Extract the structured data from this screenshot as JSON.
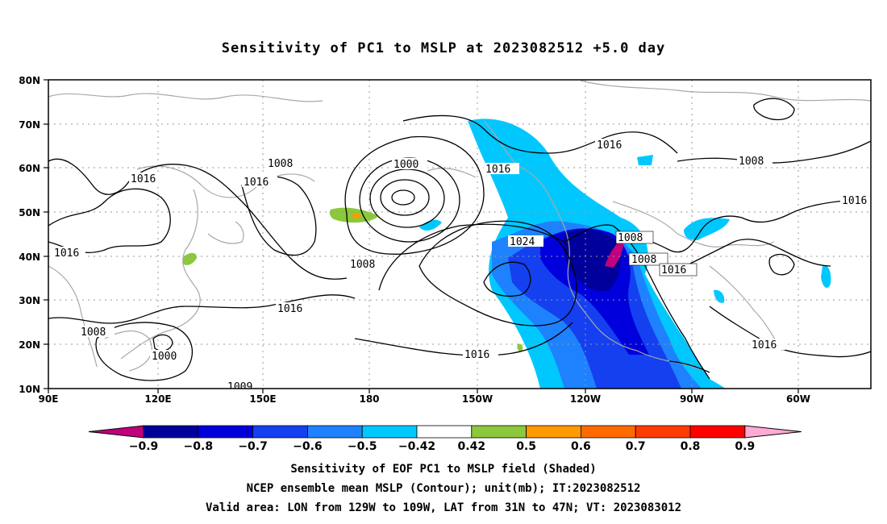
{
  "title": "Sensitivity of PC1 to MSLP at 2023082512 +5.0 day",
  "lat_ticks": [
    "80N",
    "70N",
    "60N",
    "50N",
    "40N",
    "30N",
    "20N",
    "10N"
  ],
  "lon_ticks": [
    "90E",
    "120E",
    "150E",
    "180",
    "150W",
    "120W",
    "90W",
    "60W"
  ],
  "contour_labels": [
    "1008",
    "1016",
    "1016",
    "1000",
    "1008",
    "1016",
    "1008",
    "1016",
    "1000",
    "1008",
    "1024",
    "1016",
    "1008",
    "1016",
    "1016",
    "1016",
    "1016",
    "1008",
    "1016",
    "1009"
  ],
  "colorbar": {
    "labels": [
      "−0.9",
      "−0.8",
      "−0.7",
      "−0.6",
      "−0.5",
      "−0.42",
      "0.42",
      "0.5",
      "0.6",
      "0.7",
      "0.8",
      "0.9"
    ],
    "colors": [
      "#c0007c",
      "#00009a",
      "#0000dc",
      "#1440f0",
      "#1e82ff",
      "#00c8ff",
      "#ffffff",
      "#8cc83c",
      "#ff9a00",
      "#ff6a00",
      "#ff3c00",
      "#ff0000",
      "#ffaad2"
    ]
  },
  "footer": {
    "line1": "Sensitivity of EOF PC1 to MSLP field (Shaded)",
    "line2": "NCEP ensemble mean MSLP (Contour); unit(mb); IT:2023082512",
    "line3": "Valid area: LON from 129W to 109W, LAT from 31N to 47N; VT: 2023083012"
  }
}
